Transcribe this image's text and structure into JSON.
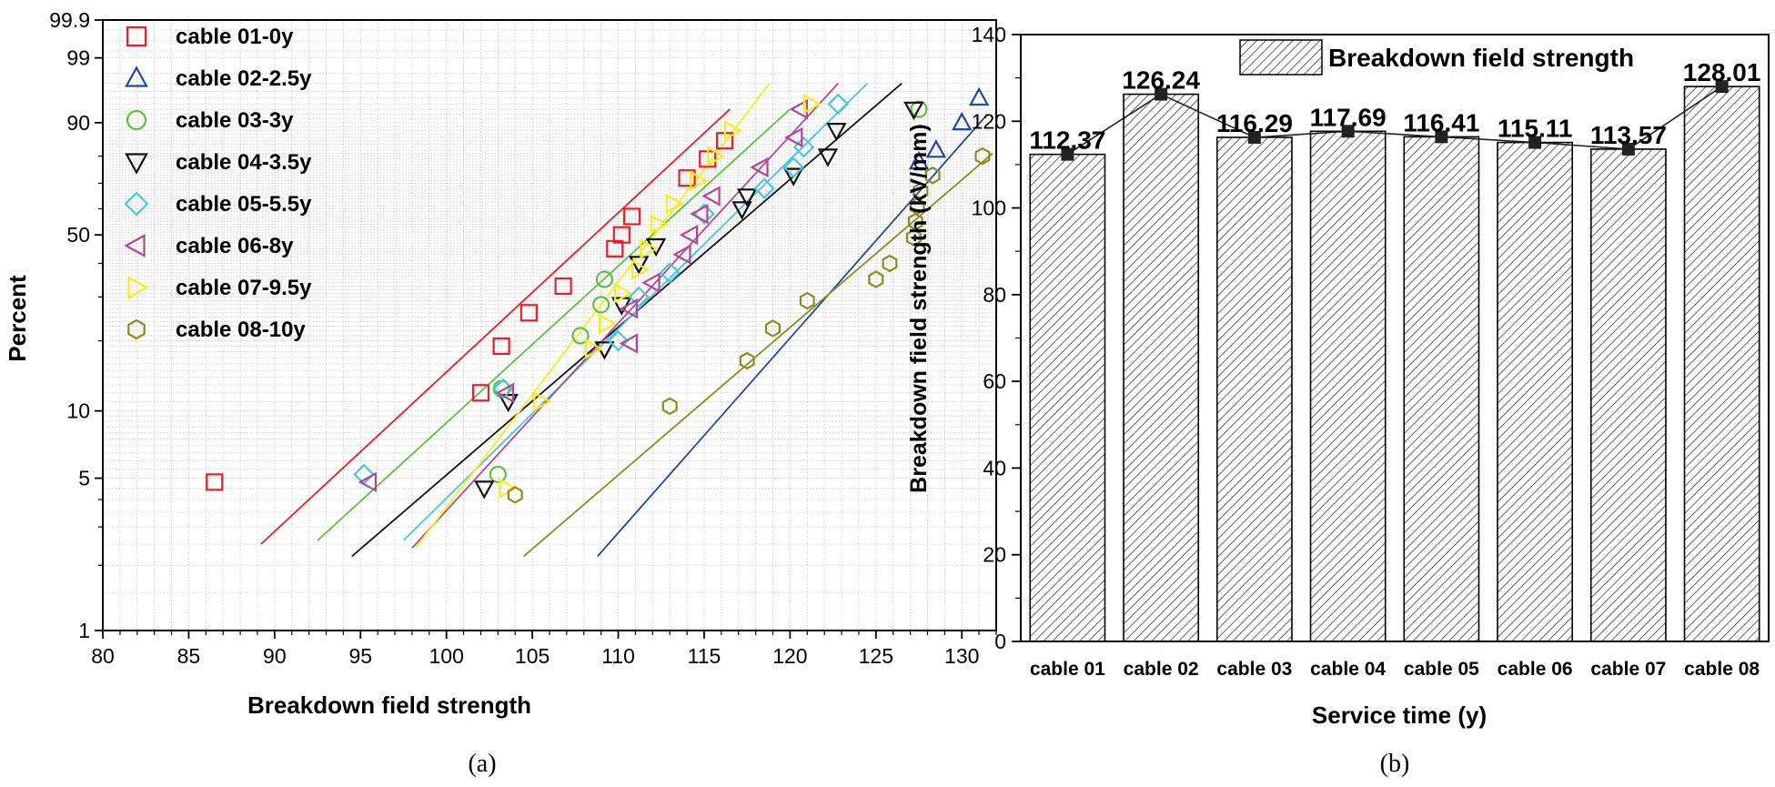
{
  "figure": {
    "subfig_a": "(a)",
    "subfig_b": "(b)"
  },
  "chart_data": [
    {
      "id": "a",
      "type": "scatter",
      "subtype": "weibull-probability-plot",
      "title": "",
      "xlabel": "Breakdown field strength",
      "ylabel": "Percent",
      "xlim": [
        80,
        132
      ],
      "x_ticks": [
        80,
        85,
        90,
        95,
        100,
        105,
        110,
        115,
        120,
        125,
        130
      ],
      "y_ticks": [
        1,
        5,
        10,
        50,
        90,
        99,
        99.9
      ],
      "y_scale": "weibull",
      "grid": true,
      "legend_position": "top-left",
      "series": [
        {
          "name": "cable 01-0y",
          "marker": "square",
          "color": "#ee1c24",
          "points": [
            [
              86.5,
              4.8
            ],
            [
              102,
              12
            ],
            [
              103.2,
              19
            ],
            [
              104.8,
              26
            ],
            [
              106.8,
              33
            ],
            [
              109.8,
              45
            ],
            [
              110.2,
              50
            ],
            [
              110.8,
              57
            ],
            [
              114,
              72
            ],
            [
              115.2,
              79
            ],
            [
              116.2,
              85
            ]
          ],
          "fit": [
            [
              89.2,
              2.5
            ],
            [
              116.5,
              93
            ]
          ]
        },
        {
          "name": "cable 02-2.5y",
          "marker": "triangle-up",
          "color": "#2146a8",
          "points": [
            [
              127.5,
              78
            ],
            [
              128.5,
              82
            ],
            [
              130,
              90
            ],
            [
              131,
              95
            ]
          ],
          "fit": [
            [
              108.8,
              2.2
            ],
            [
              131.5,
              92
            ]
          ]
        },
        {
          "name": "cable 03-3y",
          "marker": "circle",
          "color": "#5fbf3f",
          "points": [
            [
              103,
              5.2
            ],
            [
              103.2,
              12.5
            ],
            [
              107.8,
              21
            ],
            [
              109,
              28
            ],
            [
              109.2,
              35
            ],
            [
              127.5,
              93
            ]
          ],
          "fit": [
            [
              92.5,
              2.6
            ],
            [
              120,
              93
            ]
          ]
        },
        {
          "name": "cable 04-3.5y",
          "marker": "triangle-down",
          "color": "#111111",
          "points": [
            [
              102.2,
              4.5
            ],
            [
              103.6,
              11
            ],
            [
              109.2,
              18.5
            ],
            [
              110.2,
              28
            ],
            [
              111.2,
              40
            ],
            [
              112.2,
              46
            ],
            [
              117.2,
              60
            ],
            [
              117.5,
              65
            ],
            [
              120.2,
              73
            ],
            [
              122.2,
              80
            ],
            [
              122.7,
              88
            ],
            [
              127.2,
              93
            ]
          ],
          "fit": [
            [
              94.5,
              2.2
            ],
            [
              126.5,
              97
            ]
          ]
        },
        {
          "name": "cable 05-5.5y",
          "marker": "diamond",
          "color": "#4ac7d3",
          "points": [
            [
              95.2,
              5.2
            ],
            [
              103.3,
              12.5
            ],
            [
              110,
              20
            ],
            [
              111.2,
              30
            ],
            [
              113,
              37
            ],
            [
              115,
              58
            ],
            [
              118.5,
              68
            ],
            [
              120.2,
              76
            ],
            [
              120.8,
              83
            ],
            [
              122.8,
              94
            ]
          ],
          "fit": [
            [
              97.5,
              2.6
            ],
            [
              124.5,
              97
            ]
          ]
        },
        {
          "name": "cable 06-8y",
          "marker": "triangle-left",
          "color": "#b0479a",
          "points": [
            [
              95.5,
              4.8
            ],
            [
              103.5,
              12
            ],
            [
              110.7,
              19.5
            ],
            [
              110.7,
              27
            ],
            [
              112,
              34
            ],
            [
              113.8,
              43
            ],
            [
              114.2,
              50
            ],
            [
              114.8,
              58
            ],
            [
              115.5,
              65
            ],
            [
              118.3,
              76
            ],
            [
              120.3,
              86
            ],
            [
              120.6,
              93
            ]
          ],
          "fit": [
            [
              98,
              2.4
            ],
            [
              122.8,
              97
            ]
          ]
        },
        {
          "name": "cable 07-9.5y",
          "marker": "triangle-right",
          "color": "#f7ed1b",
          "points": [
            [
              103.5,
              4.5
            ],
            [
              105.5,
              11
            ],
            [
              108.5,
              18.5
            ],
            [
              109.3,
              23.5
            ],
            [
              110.2,
              31
            ],
            [
              111.2,
              38
            ],
            [
              111.7,
              45
            ],
            [
              112.3,
              54
            ],
            [
              113.2,
              62
            ],
            [
              114.6,
              71
            ],
            [
              115.6,
              80
            ],
            [
              116.6,
              88
            ],
            [
              121.2,
              94
            ]
          ],
          "fit": [
            [
              98.2,
              2.4
            ],
            [
              118.8,
              97
            ]
          ]
        },
        {
          "name": "cable 08-10y",
          "marker": "hexagon",
          "color": "#8b8b1e",
          "points": [
            [
              104,
              4.2
            ],
            [
              113,
              10.5
            ],
            [
              117.5,
              16.5
            ],
            [
              119,
              22.5
            ],
            [
              121,
              29
            ],
            [
              125,
              35
            ],
            [
              125.8,
              40
            ],
            [
              127.2,
              49
            ],
            [
              127.3,
              55
            ],
            [
              127.4,
              61
            ],
            [
              127.6,
              67
            ],
            [
              128.3,
              73
            ],
            [
              131.2,
              80
            ]
          ],
          "fit": [
            [
              104.5,
              2.2
            ],
            [
              131.8,
              81
            ]
          ]
        }
      ]
    },
    {
      "id": "b",
      "type": "bar",
      "title": "",
      "legend": "Breakdown field strength",
      "legend_position": "top",
      "xlabel": "Service time (y)",
      "ylabel": "Breakdown field strength (kV/mm)",
      "ylim": [
        0,
        140
      ],
      "y_ticks": [
        0,
        20,
        40,
        60,
        80,
        100,
        120,
        140
      ],
      "categories": [
        "cable 01",
        "cable 02",
        "cable 03",
        "cable 04",
        "cable 05",
        "cable 06",
        "cable 07",
        "cable 08"
      ],
      "values": [
        112.37,
        126.24,
        116.29,
        117.69,
        116.41,
        115.11,
        113.57,
        128.01
      ],
      "value_labels": [
        "112.37",
        "126.24",
        "116.29",
        "117.69",
        "116.41",
        "115.11",
        "113.57",
        "128.01"
      ],
      "line_overlay": true
    }
  ]
}
